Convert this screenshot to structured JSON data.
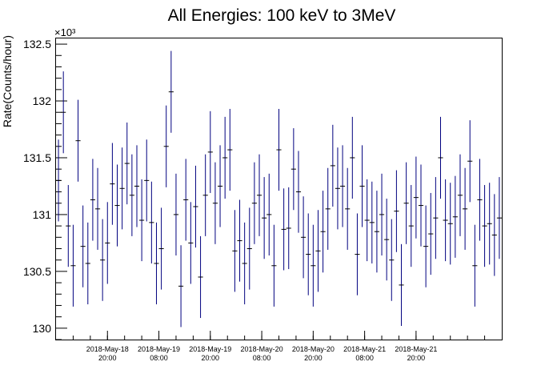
{
  "chart_data": {
    "type": "scatter",
    "title": "All Energies:  100 keV to 3MeV",
    "xlabel": "",
    "ylabel": "Rate(Counts/hour)",
    "y_multiplier_label": "×10³",
    "ylim": [
      129.9,
      132.55
    ],
    "y_ticks": [
      130,
      130.5,
      131,
      131.5,
      132,
      132.5
    ],
    "y_tick_labels": [
      "130",
      "130.5",
      "131",
      "131.5",
      "132",
      "132.5"
    ],
    "x_hours_range": [
      0,
      104
    ],
    "x_ticks": [
      {
        "hour": 12,
        "date": "2018-May-18",
        "time": "20:00"
      },
      {
        "hour": 24,
        "date": "2018-May-19",
        "time": "08:00"
      },
      {
        "hour": 36,
        "date": "2018-May-19",
        "time": "20:00"
      },
      {
        "hour": 48,
        "date": "2018-May-20",
        "time": "08:00"
      },
      {
        "hour": 60,
        "date": "2018-May-20",
        "time": "20:00"
      },
      {
        "hour": 72,
        "date": "2018-May-21",
        "time": "08:00"
      },
      {
        "hour": 84,
        "date": "2018-May-21",
        "time": "20:00"
      }
    ],
    "error": 0.36,
    "series": [
      {
        "color": "#00007f",
        "values": [
          131.3,
          131.9,
          130.9,
          130.55,
          131.65,
          130.72,
          130.57,
          131.13,
          131.05,
          130.6,
          130.75,
          131.27,
          131.08,
          131.23,
          131.45,
          131.17,
          131.25,
          130.95,
          131.3,
          130.93,
          130.57,
          130.7,
          131.6,
          132.08,
          131.0,
          130.37,
          131.13,
          130.75,
          131.07,
          130.45,
          131.17,
          131.55,
          131.1,
          131.25,
          131.5,
          131.57,
          130.68,
          130.77,
          130.57,
          130.7,
          131.1,
          131.17,
          130.97,
          131.0,
          130.55,
          131.57,
          130.87,
          130.88,
          131.4,
          131.2,
          130.8,
          130.65,
          130.55,
          130.68,
          130.85,
          131.05,
          131.43,
          131.23,
          131.25,
          131.05,
          131.5,
          130.65,
          131.25,
          130.95,
          130.93,
          130.85,
          131.0,
          130.78,
          130.6,
          131.03,
          130.38,
          131.1,
          130.9,
          131.15,
          131.08,
          130.72,
          130.83,
          130.97,
          131.5,
          130.95,
          130.92,
          130.98,
          131.17,
          131.05,
          131.47,
          130.55,
          131.13,
          130.9,
          130.92,
          130.82,
          130.97
        ]
      }
    ]
  }
}
